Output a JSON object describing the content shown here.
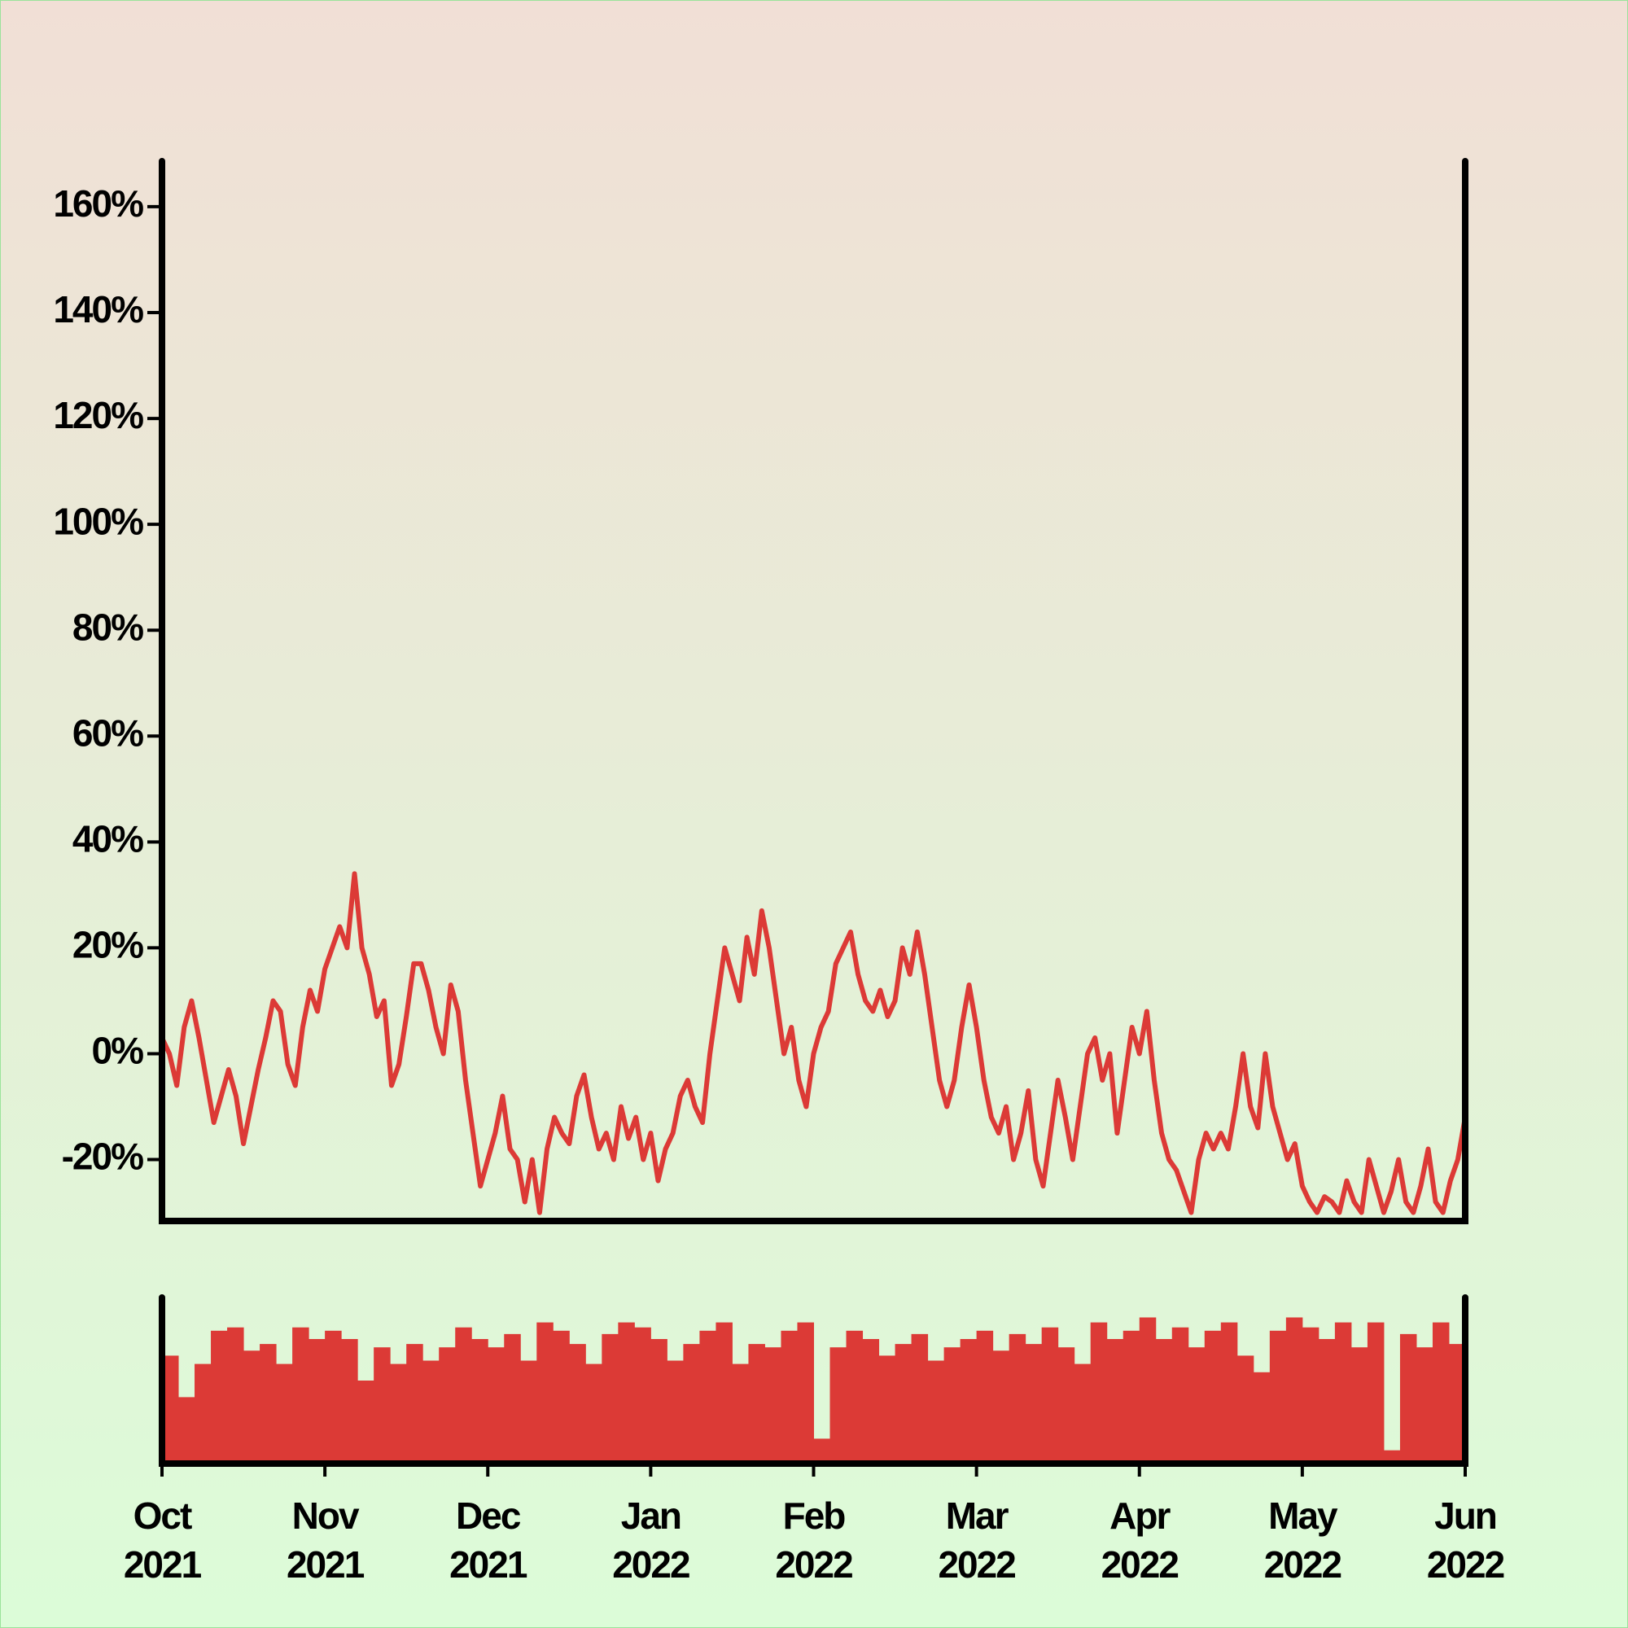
{
  "chart_data": [
    {
      "type": "line",
      "color": "#dc3a36",
      "values": [
        3,
        0,
        -6,
        5,
        10,
        3,
        -5,
        -13,
        -8,
        -3,
        -8,
        -17,
        -10,
        -3,
        3,
        10,
        8,
        -2,
        -6,
        5,
        12,
        8,
        16,
        20,
        24,
        20,
        34,
        20,
        15,
        7,
        10,
        -6,
        -2,
        7,
        17,
        17,
        12,
        5,
        0,
        13,
        8,
        -5,
        -15,
        -25,
        -20,
        -15,
        -8,
        -18,
        -20,
        -28,
        -20,
        -30,
        -18,
        -12,
        -15,
        -17,
        -8,
        -4,
        -12,
        -18,
        -15,
        -20,
        -10,
        -16,
        -12,
        -20,
        -15,
        -24,
        -18,
        -15,
        -8,
        -5,
        -10,
        -13,
        0,
        10,
        20,
        15,
        10,
        22,
        15,
        27,
        20,
        10,
        0,
        5,
        -5,
        -10,
        0,
        5,
        8,
        17,
        20,
        23,
        15,
        10,
        8,
        12,
        7,
        10,
        20,
        15,
        23,
        15,
        5,
        -5,
        -10,
        -5,
        5,
        13,
        5,
        -5,
        -12,
        -15,
        -10,
        -20,
        -15,
        -7,
        -20,
        -25,
        -15,
        -5,
        -12,
        -20,
        -10,
        0,
        3,
        -5,
        0,
        -15,
        -5,
        5,
        0,
        8,
        -5,
        -15,
        -20,
        -22,
        -26,
        -30,
        -20,
        -15,
        -18,
        -15,
        -18,
        -10,
        0,
        -10,
        -14,
        0,
        -10,
        -15,
        -20,
        -17,
        -25,
        -28,
        -30,
        -27,
        -28,
        -30,
        -24,
        -28,
        -30,
        -20,
        -25,
        -30,
        -26,
        -20,
        -28,
        -30,
        -25,
        -18,
        -28,
        -30,
        -24,
        -20,
        -12
      ],
      "xlim": [
        0,
        8
      ],
      "ylim": [
        -31.6,
        168.6
      ],
      "yticks": [
        {
          "value": -20,
          "label": "-20%"
        },
        {
          "value": 0,
          "label": "0%"
        },
        {
          "value": 20,
          "label": "20%"
        },
        {
          "value": 40,
          "label": "40%"
        },
        {
          "value": 60,
          "label": "60%"
        },
        {
          "value": 80,
          "label": "80%"
        },
        {
          "value": 100,
          "label": "100%"
        },
        {
          "value": 120,
          "label": "120%"
        },
        {
          "value": 140,
          "label": "140%"
        },
        {
          "value": 160,
          "label": "160%"
        }
      ]
    },
    {
      "type": "bar",
      "color": "#dc3a36",
      "values": [
        65,
        40,
        60,
        80,
        82,
        68,
        72,
        60,
        82,
        75,
        80,
        75,
        50,
        70,
        60,
        72,
        62,
        70,
        82,
        75,
        70,
        78,
        62,
        85,
        80,
        72,
        60,
        78,
        85,
        82,
        75,
        62,
        72,
        80,
        85,
        60,
        72,
        70,
        80,
        85,
        15,
        70,
        80,
        75,
        65,
        72,
        78,
        62,
        70,
        75,
        80,
        68,
        78,
        72,
        82,
        70,
        60,
        85,
        75,
        80,
        88,
        75,
        82,
        70,
        80,
        85,
        65,
        55,
        80,
        88,
        82,
        75,
        85,
        70,
        85,
        8,
        78,
        70,
        85,
        72
      ],
      "xlim": [
        0,
        8
      ],
      "ylim": [
        0,
        100
      ],
      "xticks": [
        {
          "value": 0,
          "label": "Oct 2021"
        },
        {
          "value": 1,
          "label": "Nov 2021"
        },
        {
          "value": 2,
          "label": "Dec 2021"
        },
        {
          "value": 3,
          "label": "Jan 2022"
        },
        {
          "value": 4,
          "label": "Feb 2022"
        },
        {
          "value": 5,
          "label": "Mar 2022"
        },
        {
          "value": 6,
          "label": "Apr 2022"
        },
        {
          "value": 7,
          "label": "May 2022"
        },
        {
          "value": 8,
          "label": "Jun 2022"
        }
      ]
    }
  ]
}
